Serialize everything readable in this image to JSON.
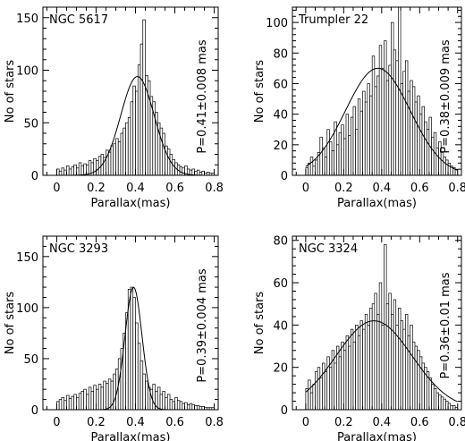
{
  "chart_data": [
    {
      "type": "bar",
      "title": "NGC 5617",
      "annotation": "P=0.41±0.008 mas",
      "xlabel": "Parallax(mas)",
      "ylabel": "No of stars",
      "xlim": [
        -0.07,
        0.82
      ],
      "ylim": [
        0,
        160
      ],
      "xticks": [
        0,
        0.2,
        0.4,
        0.6,
        0.8
      ],
      "yticks": [
        0,
        50,
        100,
        150
      ],
      "xtick_labels": [
        "0",
        "0.2",
        "0.4",
        "0.6",
        "0.8"
      ],
      "ytick_labels": [
        "0",
        "50",
        "100",
        "150"
      ],
      "bin_width": 0.0125,
      "bins_start": 0.0,
      "values": [
        6,
        4,
        7,
        5,
        9,
        6,
        8,
        10,
        7,
        12,
        9,
        11,
        10,
        14,
        12,
        16,
        14,
        18,
        20,
        17,
        24,
        22,
        28,
        30,
        35,
        32,
        40,
        45,
        50,
        55,
        70,
        85,
        80,
        105,
        125,
        148,
        95,
        90,
        75,
        70,
        60,
        50,
        45,
        40,
        28,
        25,
        20,
        15,
        12,
        10,
        8,
        7,
        9,
        6,
        5,
        6,
        4,
        5,
        3,
        4,
        2,
        3,
        2,
        2
      ],
      "fit": {
        "mu": 0.41,
        "sigma": 0.085,
        "amp": 94
      },
      "grid": false,
      "legend": "none"
    },
    {
      "type": "bar",
      "title": "Trumpler 22",
      "annotation": "P=0.38±0.009 mas",
      "xlabel": "Parallax(mas)",
      "ylabel": "No of stars",
      "xlim": [
        -0.07,
        0.82
      ],
      "ylim": [
        0,
        110
      ],
      "xticks": [
        0,
        0.2,
        0.4,
        0.6,
        0.8
      ],
      "yticks": [
        0,
        20,
        40,
        60,
        80,
        100
      ],
      "xtick_labels": [
        "0",
        "0.2",
        "0.4",
        "0.6",
        "0.8"
      ],
      "ytick_labels": [
        "0",
        "20",
        "40",
        "60",
        "80",
        "100"
      ],
      "bin_width": 0.0125,
      "bins_start": 0.0,
      "values": [
        5,
        8,
        12,
        6,
        10,
        15,
        25,
        18,
        12,
        30,
        22,
        16,
        35,
        20,
        28,
        33,
        24,
        40,
        26,
        38,
        45,
        30,
        50,
        42,
        55,
        48,
        60,
        52,
        78,
        58,
        65,
        85,
        70,
        88,
        62,
        72,
        100,
        82,
        75,
        110,
        60,
        68,
        75,
        55,
        62,
        58,
        48,
        52,
        40,
        45,
        35,
        30,
        38,
        25,
        28,
        18,
        22,
        15,
        12,
        10,
        8,
        6,
        5,
        4
      ],
      "fit": {
        "mu": 0.38,
        "sigma": 0.17,
        "amp": 70
      },
      "grid": false,
      "legend": "none"
    },
    {
      "type": "bar",
      "title": "NGC 3293",
      "annotation": "P=0.39±0.004 mas",
      "xlabel": "Parallax(mas)",
      "ylabel": "No of stars",
      "xlim": [
        -0.07,
        0.82
      ],
      "ylim": [
        0,
        170
      ],
      "xticks": [
        0,
        0.2,
        0.4,
        0.6,
        0.8
      ],
      "yticks": [
        0,
        50,
        100,
        150
      ],
      "xtick_labels": [
        "0",
        "0.2",
        "0.4",
        "0.6",
        "0.8"
      ],
      "ytick_labels": [
        "0",
        "50",
        "100",
        "150"
      ],
      "bin_width": 0.0125,
      "bins_start": 0.0,
      "values": [
        8,
        10,
        12,
        9,
        14,
        11,
        13,
        15,
        12,
        16,
        18,
        20,
        15,
        22,
        18,
        24,
        20,
        25,
        22,
        28,
        26,
        30,
        28,
        35,
        40,
        50,
        60,
        75,
        95,
        118,
        120,
        110,
        85,
        65,
        48,
        35,
        28,
        22,
        20,
        25,
        18,
        22,
        15,
        18,
        12,
        15,
        10,
        8,
        12,
        9,
        8,
        6,
        7,
        5,
        6,
        5,
        4,
        4,
        3,
        3,
        2,
        2,
        2,
        2
      ],
      "fit": {
        "mu": 0.39,
        "sigma": 0.043,
        "amp": 120
      },
      "grid": false,
      "legend": "none"
    },
    {
      "type": "bar",
      "title": "NGC 3324",
      "annotation": "P=0.36±0.01 mas",
      "xlabel": "Parallax(mas)",
      "ylabel": "No of stars",
      "xlim": [
        -0.07,
        0.82
      ],
      "ylim": [
        0,
        82
      ],
      "xticks": [
        0,
        0.2,
        0.4,
        0.6,
        0.8
      ],
      "yticks": [
        0,
        20,
        40,
        60,
        80
      ],
      "xtick_labels": [
        "0",
        "0.2",
        "0.4",
        "0.6",
        "0.8"
      ],
      "ytick_labels": [
        "0",
        "20",
        "40",
        "60",
        "80"
      ],
      "bin_width": 0.0125,
      "bins_start": 0.0,
      "values": [
        10,
        14,
        8,
        12,
        18,
        20,
        15,
        22,
        18,
        25,
        20,
        28,
        22,
        30,
        25,
        32,
        28,
        35,
        30,
        38,
        32,
        40,
        35,
        42,
        38,
        45,
        40,
        48,
        50,
        55,
        45,
        60,
        40,
        78,
        50,
        55,
        45,
        52,
        40,
        48,
        42,
        38,
        45,
        35,
        40,
        32,
        30,
        28,
        25,
        22,
        20,
        18,
        15,
        12,
        10,
        8,
        7,
        6,
        5,
        4,
        3,
        2,
        2,
        1
      ],
      "fit": {
        "mu": 0.36,
        "sigma": 0.2,
        "amp": 42
      },
      "grid": false,
      "legend": "none"
    }
  ]
}
